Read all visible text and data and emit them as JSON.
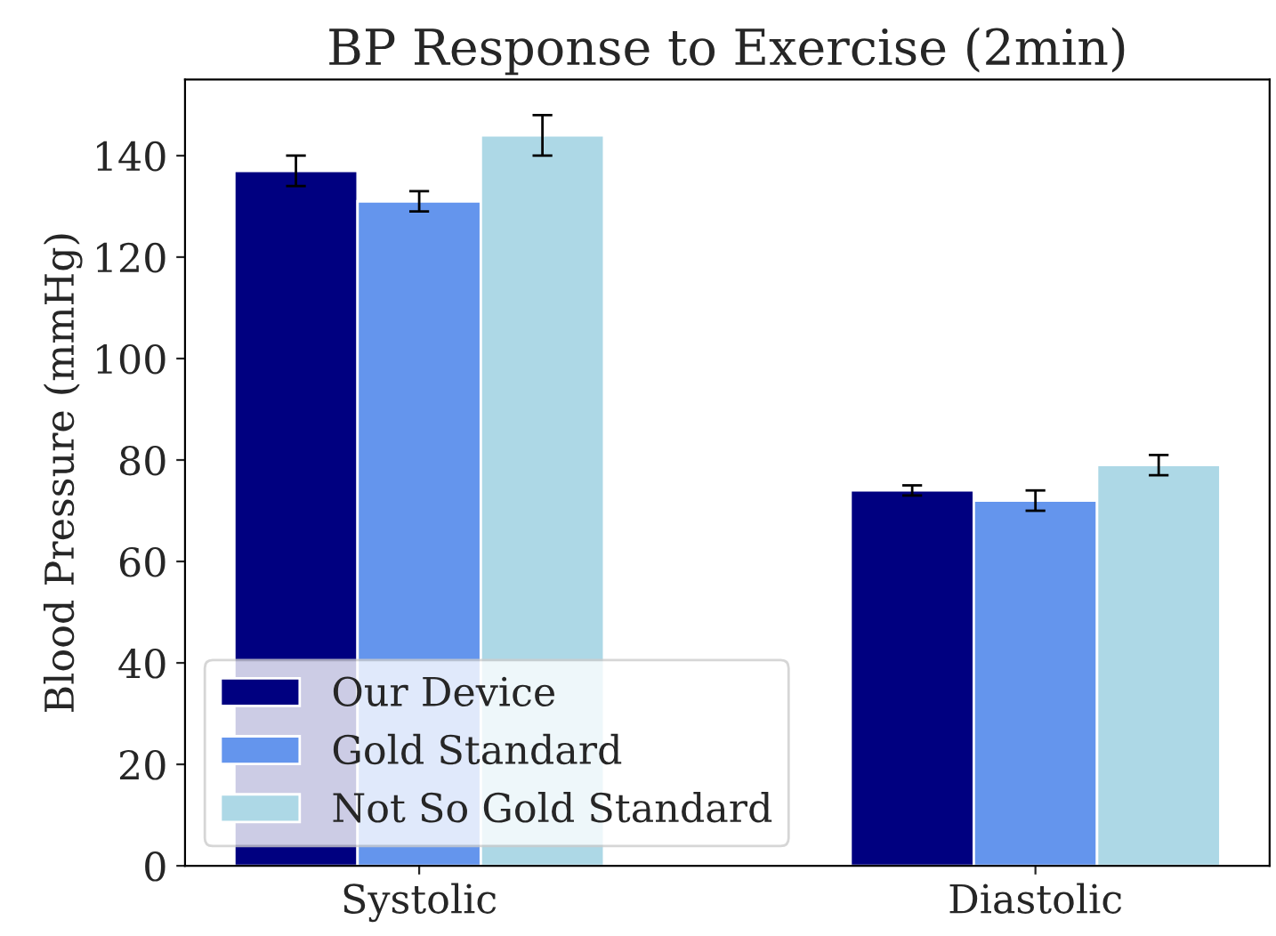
{
  "chart_data": {
    "type": "bar",
    "title": "BP Response to Exercise (2min)",
    "ylabel": "Blood Pressure (mmHg)",
    "categories": [
      "Systolic",
      "Diastolic"
    ],
    "series": [
      {
        "name": "Our Device",
        "color": "#000080",
        "values": [
          137,
          74
        ],
        "errors": [
          3,
          1
        ]
      },
      {
        "name": "Gold Standard",
        "color": "#6495ed",
        "values": [
          131,
          72
        ],
        "errors": [
          2,
          2
        ]
      },
      {
        "name": "Not So Gold Standard",
        "color": "#add8e6",
        "values": [
          144,
          79
        ],
        "errors": [
          4,
          2
        ]
      }
    ],
    "ylim": [
      0,
      155
    ],
    "yticks": [
      0,
      20,
      40,
      60,
      80,
      100,
      120,
      140
    ],
    "grid": false,
    "legend": "bottom left"
  }
}
